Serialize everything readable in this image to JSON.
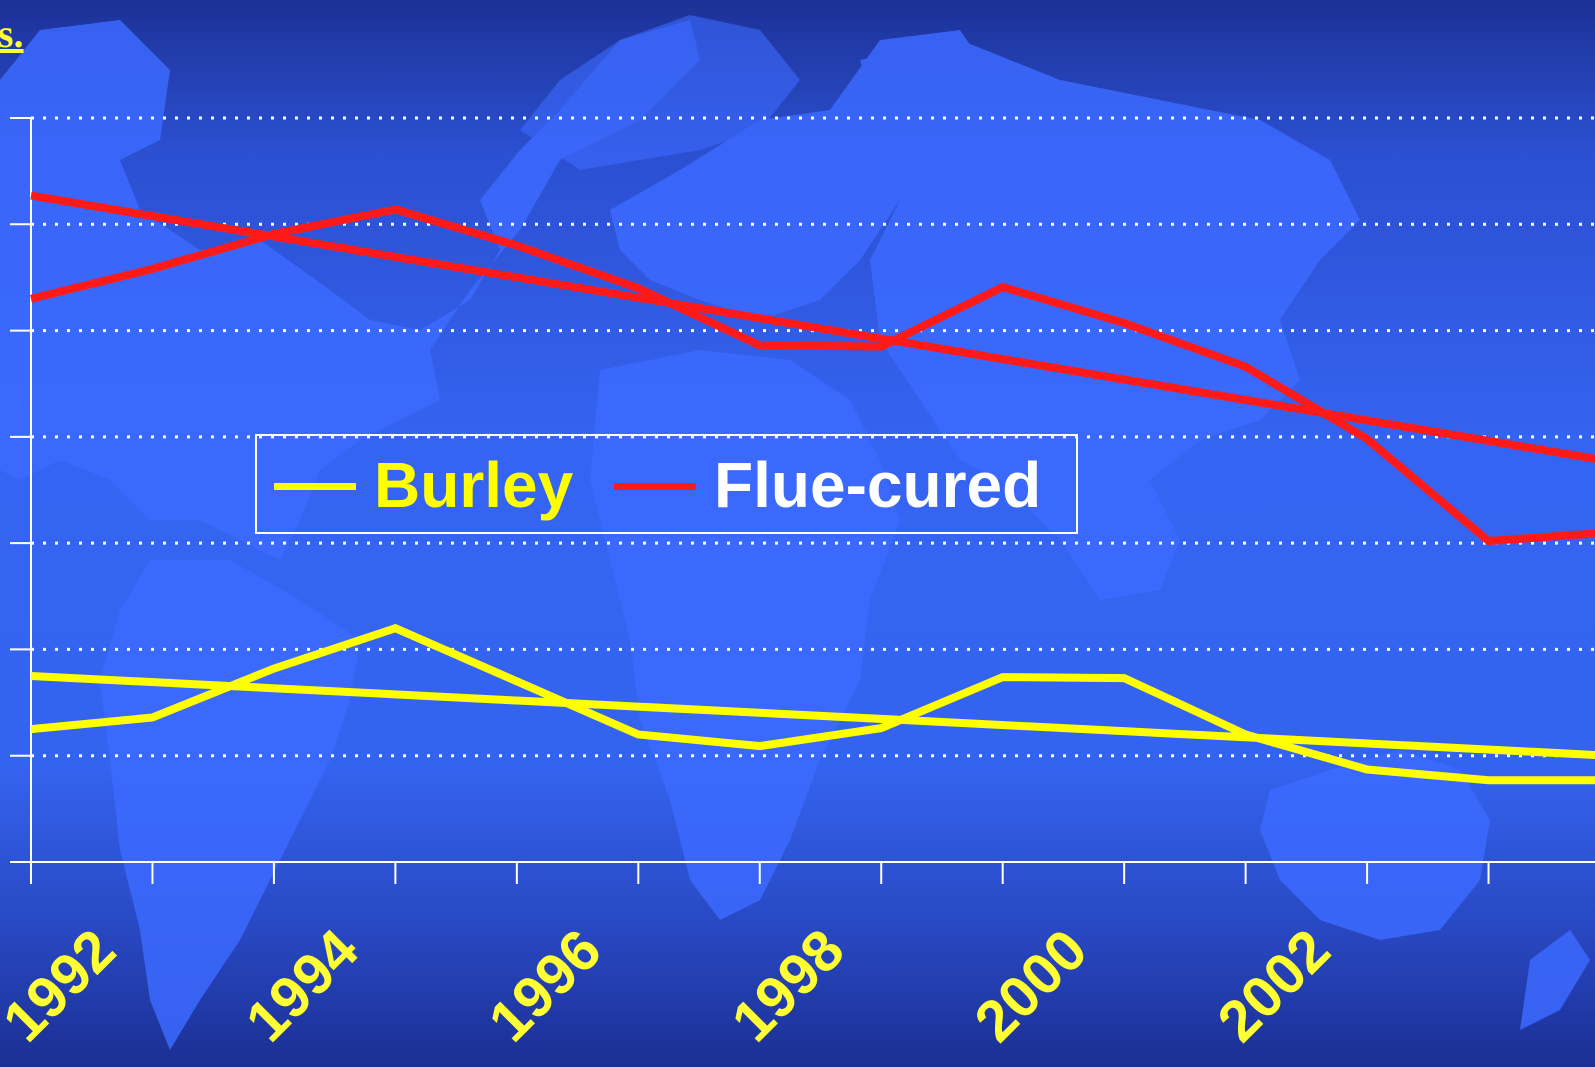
{
  "title_fragment": "s.",
  "colors": {
    "burley": "#ffff00",
    "flue_cured": "#ff1a1a",
    "axis": "#ffffff",
    "tick_label": "#ffff33",
    "legend_flue_cured_label": "#ffffff"
  },
  "chart_data": {
    "type": "line",
    "title": "",
    "xlabel": "",
    "ylabel": "",
    "xlim": [
      1991,
      2004
    ],
    "ylim": [
      0,
      7
    ],
    "x_tick_labels": [
      "1992",
      "1994",
      "1996",
      "1998",
      "2000",
      "2002"
    ],
    "grid": "horizontal dotted",
    "legend": {
      "position": "center",
      "entries": [
        "Burley",
        "Flue-cured"
      ]
    },
    "series": [
      {
        "name": "Burley",
        "x": [
          1991,
          1992,
          1993,
          1994,
          1995,
          1996,
          1997,
          1998,
          1999,
          2000,
          2001,
          2002,
          2003,
          2004
        ],
        "values": [
          1.25,
          1.36,
          1.82,
          2.2,
          1.7,
          1.2,
          1.09,
          1.26,
          1.74,
          1.73,
          1.2,
          0.87,
          0.77,
          0.77
        ]
      },
      {
        "name": "Burley trend",
        "x": [
          1991,
          2004
        ],
        "values": [
          1.75,
          1.0
        ]
      },
      {
        "name": "Flue-cured",
        "x": [
          1991,
          1992,
          1993,
          1994,
          1995,
          1996,
          1997,
          1998,
          1999,
          2000,
          2001,
          2002,
          2003,
          2004
        ],
        "values": [
          5.3,
          5.58,
          5.91,
          6.14,
          5.8,
          5.4,
          4.86,
          4.85,
          5.41,
          5.07,
          4.66,
          3.98,
          3.02,
          3.1
        ]
      },
      {
        "name": "Flue-cured trend",
        "x": [
          1991,
          2004
        ],
        "values": [
          6.27,
          3.77
        ]
      }
    ]
  }
}
